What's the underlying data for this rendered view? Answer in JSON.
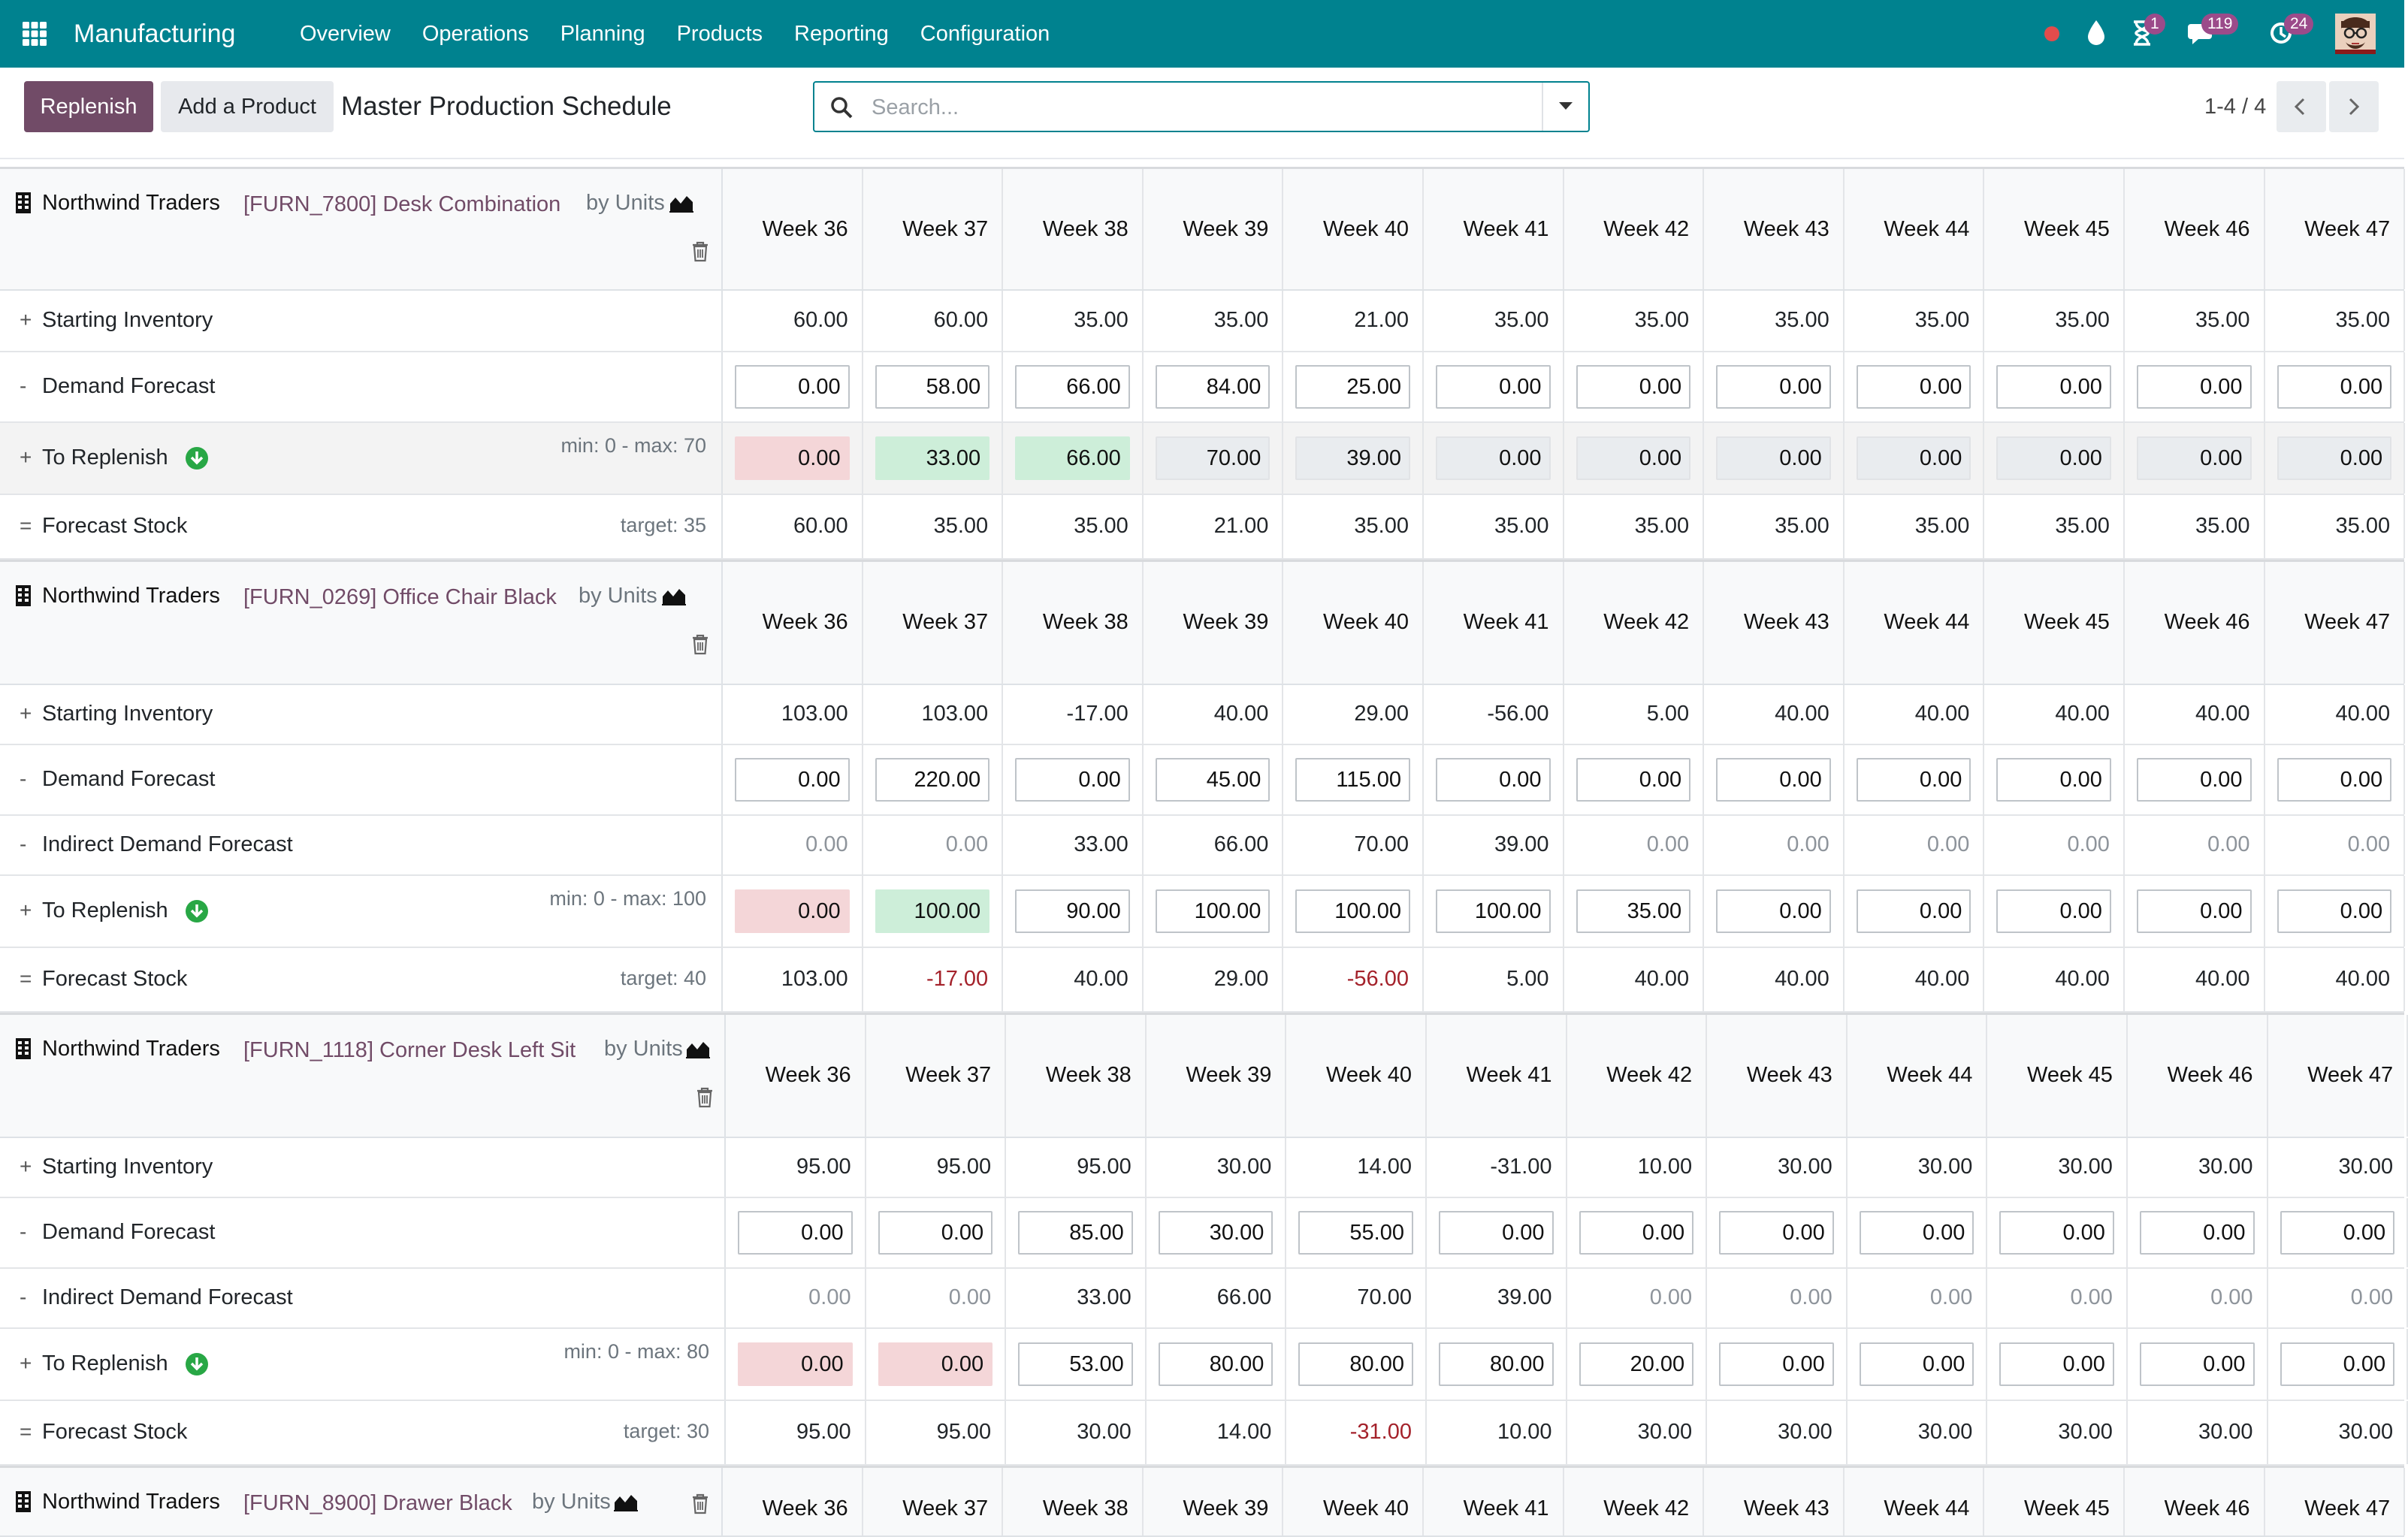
{
  "navbar": {
    "app_name": "Manufacturing",
    "menu": [
      "Overview",
      "Operations",
      "Planning",
      "Products",
      "Reporting",
      "Configuration"
    ],
    "badges": {
      "activities": "1",
      "messages": "119",
      "updates": "24"
    },
    "colors": {
      "bar": "#00828f",
      "badge": "#9b4b8a",
      "record_dot": "#e24c4c"
    }
  },
  "control": {
    "replenish_label": "Replenish",
    "add_product_label": "Add a Product",
    "title": "Master Production Schedule",
    "search_placeholder": "Search...",
    "pager": "1-4 / 4"
  },
  "labels": {
    "starting_inventory": "Starting Inventory",
    "demand_forecast": "Demand Forecast",
    "indirect_demand": "Indirect Demand Forecast",
    "to_replenish": "To Replenish",
    "forecast_stock": "Forecast Stock",
    "op_plus": "+",
    "op_minus": "-",
    "op_equals": "="
  },
  "products": [
    {
      "warehouse": "Northwind Traders",
      "product": "[FURN_7800] Desk Combination",
      "unit": "by Units",
      "weeks": [
        "Week 36",
        "Week 37",
        "Week 38",
        "Week 39",
        "Week 40",
        "Week 41",
        "Week 42",
        "Week 43",
        "Week 44",
        "Week 45",
        "Week 46",
        "Week 47"
      ],
      "min_max": "min: 0 - max: 70",
      "target": "target: 35",
      "starting_inventory": [
        "60.00",
        "60.00",
        "35.00",
        "35.00",
        "21.00",
        "35.00",
        "35.00",
        "35.00",
        "35.00",
        "35.00",
        "35.00",
        "35.00"
      ],
      "demand_forecast": [
        "0.00",
        "58.00",
        "66.00",
        "84.00",
        "25.00",
        "0.00",
        "0.00",
        "0.00",
        "0.00",
        "0.00",
        "0.00",
        "0.00"
      ],
      "to_replenish": [
        "0.00",
        "33.00",
        "66.00",
        "70.00",
        "39.00",
        "0.00",
        "0.00",
        "0.00",
        "0.00",
        "0.00",
        "0.00",
        "0.00"
      ],
      "forecast_stock": [
        "60.00",
        "35.00",
        "35.00",
        "21.00",
        "35.00",
        "35.00",
        "35.00",
        "35.00",
        "35.00",
        "35.00",
        "35.00",
        "35.00"
      ]
    },
    {
      "warehouse": "Northwind Traders",
      "product": "[FURN_0269] Office Chair Black",
      "unit": "by Units",
      "weeks": [
        "Week 36",
        "Week 37",
        "Week 38",
        "Week 39",
        "Week 40",
        "Week 41",
        "Week 42",
        "Week 43",
        "Week 44",
        "Week 45",
        "Week 46",
        "Week 47"
      ],
      "min_max": "min: 0 - max: 100",
      "target": "target: 40",
      "starting_inventory": [
        "103.00",
        "103.00",
        "-17.00",
        "40.00",
        "29.00",
        "-56.00",
        "5.00",
        "40.00",
        "40.00",
        "40.00",
        "40.00",
        "40.00"
      ],
      "demand_forecast": [
        "0.00",
        "220.00",
        "0.00",
        "45.00",
        "115.00",
        "0.00",
        "0.00",
        "0.00",
        "0.00",
        "0.00",
        "0.00",
        "0.00"
      ],
      "indirect_demand": [
        "0.00",
        "0.00",
        "33.00",
        "66.00",
        "70.00",
        "39.00",
        "0.00",
        "0.00",
        "0.00",
        "0.00",
        "0.00",
        "0.00"
      ],
      "to_replenish": [
        "0.00",
        "100.00",
        "90.00",
        "100.00",
        "100.00",
        "100.00",
        "35.00",
        "0.00",
        "0.00",
        "0.00",
        "0.00",
        "0.00"
      ],
      "forecast_stock": [
        "103.00",
        "-17.00",
        "40.00",
        "29.00",
        "-56.00",
        "5.00",
        "40.00",
        "40.00",
        "40.00",
        "40.00",
        "40.00",
        "40.00"
      ]
    },
    {
      "warehouse": "Northwind Traders",
      "product": "[FURN_1118] Corner Desk Left Sit",
      "unit": "by Units",
      "weeks": [
        "Week 36",
        "Week 37",
        "Week 38",
        "Week 39",
        "Week 40",
        "Week 41",
        "Week 42",
        "Week 43",
        "Week 44",
        "Week 45",
        "Week 46",
        "Week 47"
      ],
      "min_max": "min: 0 - max: 80",
      "target": "target: 30",
      "starting_inventory": [
        "95.00",
        "95.00",
        "95.00",
        "30.00",
        "14.00",
        "-31.00",
        "10.00",
        "30.00",
        "30.00",
        "30.00",
        "30.00",
        "30.00"
      ],
      "demand_forecast": [
        "0.00",
        "0.00",
        "85.00",
        "30.00",
        "55.00",
        "0.00",
        "0.00",
        "0.00",
        "0.00",
        "0.00",
        "0.00",
        "0.00"
      ],
      "indirect_demand": [
        "0.00",
        "0.00",
        "33.00",
        "66.00",
        "70.00",
        "39.00",
        "0.00",
        "0.00",
        "0.00",
        "0.00",
        "0.00",
        "0.00"
      ],
      "to_replenish": [
        "0.00",
        "0.00",
        "53.00",
        "80.00",
        "80.00",
        "80.00",
        "20.00",
        "0.00",
        "0.00",
        "0.00",
        "0.00",
        "0.00"
      ],
      "forecast_stock": [
        "95.00",
        "95.00",
        "30.00",
        "14.00",
        "-31.00",
        "10.00",
        "30.00",
        "30.00",
        "30.00",
        "30.00",
        "30.00",
        "30.00"
      ]
    },
    {
      "warehouse": "Northwind Traders",
      "product": "[FURN_8900] Drawer Black",
      "unit": "by Units",
      "weeks": [
        "Week 36",
        "Week 37",
        "Week 38",
        "Week 39",
        "Week 40",
        "Week 41",
        "Week 42",
        "Week 43",
        "Week 44",
        "Week 45",
        "Week 46",
        "Week 47"
      ]
    }
  ]
}
